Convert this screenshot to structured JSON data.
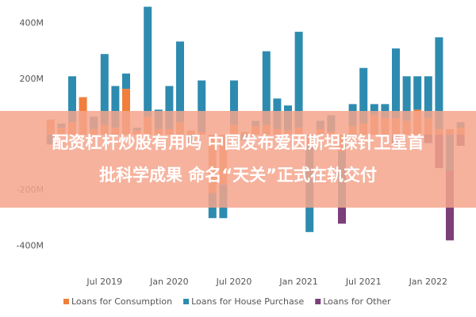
{
  "chart_data": {
    "type": "stacked-bar",
    "annotations": [
      "配资杠杆炒股有用吗 中国发布爱因斯坦探针卫星首",
      "批科学成果 命名“天关”正式在轨交付"
    ],
    "categories": [
      null,
      null,
      null,
      null,
      null,
      "Jul 2019",
      null,
      null,
      null,
      null,
      null,
      "Jan 2020",
      null,
      null,
      null,
      null,
      null,
      "Jul 2020",
      null,
      null,
      null,
      null,
      null,
      "Jan 2021",
      null,
      null,
      null,
      null,
      null,
      "Jul 2021",
      null,
      null,
      null,
      null,
      null,
      "Jan 2022",
      null,
      null,
      null
    ],
    "series": [
      {
        "name": "Loans for Consumption",
        "color": "#f07f3c",
        "values": [
          55,
          25,
          45,
          135,
          20,
          35,
          25,
          165,
          15,
          65,
          20,
          20,
          45,
          15,
          10,
          -210,
          -180,
          35,
          10,
          30,
          35,
          20,
          15,
          25,
          -40,
          20,
          10,
          -60,
          30,
          40,
          70,
          60,
          60,
          50,
          90,
          60,
          20,
          20,
          25
        ]
      },
      {
        "name": "Loans for House Purchase",
        "color": "#2e8bb0",
        "values": [
          -35,
          15,
          165,
          0,
          45,
          255,
          150,
          55,
          10,
          395,
          70,
          155,
          290,
          -30,
          185,
          -90,
          -120,
          160,
          -20,
          20,
          265,
          110,
          90,
          345,
          -310,
          30,
          60,
          -200,
          80,
          200,
          40,
          50,
          250,
          160,
          120,
          150,
          330,
          -130,
          20
        ]
      },
      {
        "name": "Loans for Other",
        "color": "#7b3f7a",
        "values": [
          0,
          0,
          0,
          0,
          0,
          0,
          0,
          0,
          0,
          0,
          0,
          0,
          0,
          0,
          0,
          0,
          0,
          0,
          0,
          0,
          0,
          0,
          0,
          0,
          0,
          0,
          0,
          -60,
          0,
          0,
          0,
          0,
          -40,
          0,
          0,
          -30,
          -120,
          -250,
          -40
        ]
      }
    ],
    "ylim": [
      -456,
      470
    ],
    "yticks": [
      {
        "value": -400,
        "label": "-400M"
      },
      {
        "value": -200,
        "label": "-200M"
      },
      {
        "value": 200,
        "label": "200M"
      },
      {
        "value": 400,
        "label": "400M"
      }
    ],
    "grid": false
  }
}
